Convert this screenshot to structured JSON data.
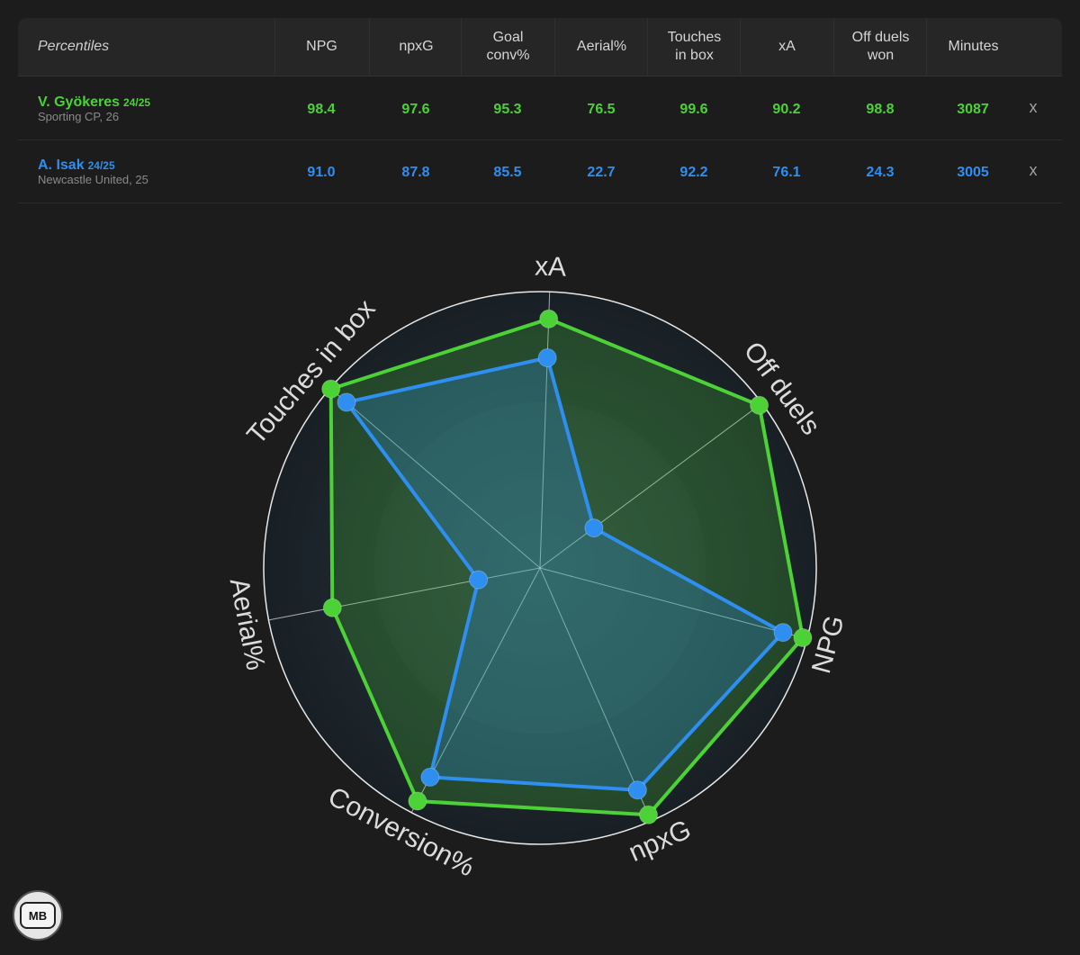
{
  "table": {
    "header_label": "Percentiles",
    "columns": [
      [
        "NPG"
      ],
      [
        "npxG"
      ],
      [
        "Goal",
        "conv%"
      ],
      [
        "Aerial%"
      ],
      [
        "Touches",
        "in box"
      ],
      [
        "xA"
      ],
      [
        "Off duels",
        "won"
      ],
      [
        "Minutes"
      ]
    ],
    "remove_label": "x"
  },
  "players": [
    {
      "name": "V. Gyökeres",
      "season": "24/25",
      "club": "Sporting CP, 26",
      "color": "#4cd137",
      "values": [
        "98.4",
        "97.6",
        "95.3",
        "76.5",
        "99.6",
        "90.2",
        "98.8",
        "3087"
      ]
    },
    {
      "name": "A. Isak",
      "season": "24/25",
      "club": "Newcastle United, 25",
      "color": "#2e8ff0",
      "values": [
        "91.0",
        "87.8",
        "85.5",
        "22.7",
        "92.2",
        "76.1",
        "24.3",
        "3005"
      ]
    }
  ],
  "chart_data": {
    "type": "radar",
    "axes": [
      "xA",
      "Off duels",
      "NPG",
      "npxG",
      "Conversion%",
      "Aerial%",
      "Touches in box"
    ],
    "range": [
      0,
      100
    ],
    "series": [
      {
        "name": "V. Gyökeres",
        "color": "#4cd137",
        "values": [
          90.2,
          98.8,
          98.4,
          97.6,
          95.3,
          76.5,
          99.6
        ]
      },
      {
        "name": "A. Isak",
        "color": "#2e8ff0",
        "values": [
          76.1,
          24.3,
          91.0,
          87.8,
          85.5,
          22.7,
          92.2
        ]
      }
    ]
  },
  "logo": {
    "text": "MB"
  }
}
